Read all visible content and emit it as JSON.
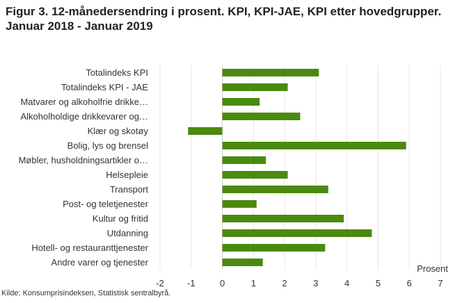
{
  "title": "Figur 3. 12-månedersendring i prosent. KPI, KPI-JAE, KPI etter hovedgrupper. Januar 2018 - Januar 2019",
  "source": "Kilde: Konsumprisindeksen, Statistisk sentralbyrå.",
  "colors": {
    "bar": "#4a8a0f",
    "grid": "#e6e6e6",
    "axis": "#333333"
  },
  "chart_data": {
    "type": "bar",
    "orientation": "horizontal",
    "title": "Figur 3. 12-månedersendring i prosent. KPI, KPI-JAE, KPI etter hovedgrupper. Januar 2018 - Januar 2019",
    "xlabel": "Prosent",
    "ylabel": "",
    "xlim": [
      -2,
      7
    ],
    "xticks": [
      "-2",
      "-1",
      "0",
      "1",
      "2",
      "3",
      "4",
      "5",
      "6",
      "7"
    ],
    "grid": true,
    "categories": [
      "Totalindeks KPI",
      "Totalindeks KPI - JAE",
      "Matvarer og alkoholfrie drikke…",
      "Alkoholholdige drikkevarer og…",
      "Klær og skotøy",
      "Bolig, lys og brensel",
      "Møbler, husholdningsartikler o…",
      "Helsepleie",
      "Transport",
      "Post- og teletjenester",
      "Kultur og fritid",
      "Utdanning",
      "Hotell- og restauranttjenester",
      "Andre varer og tjenester"
    ],
    "values": [
      3.1,
      2.1,
      1.2,
      2.5,
      -1.1,
      5.9,
      1.4,
      2.1,
      3.4,
      1.1,
      3.9,
      4.8,
      3.3,
      1.3
    ]
  }
}
